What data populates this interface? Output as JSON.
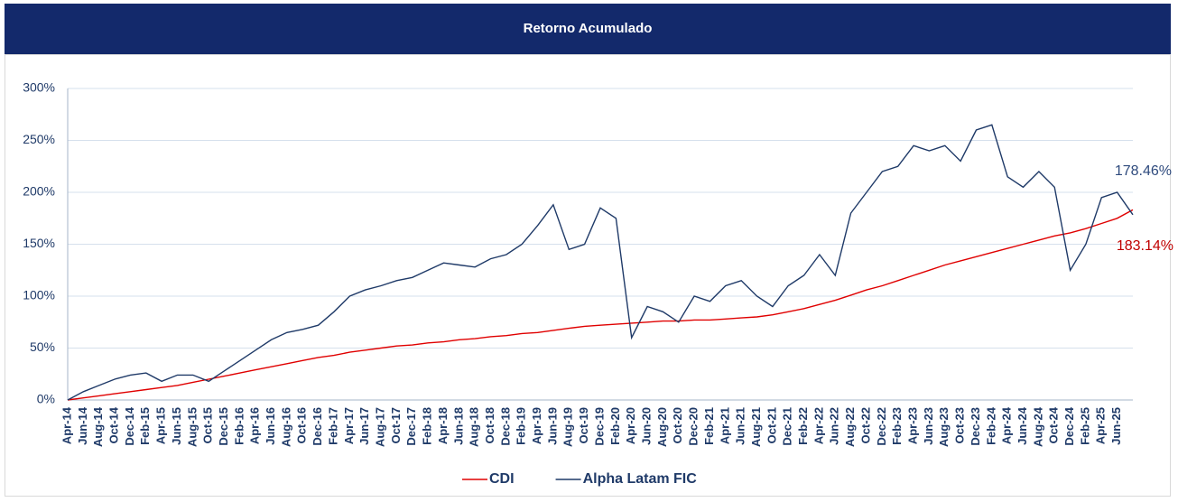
{
  "chart_data": {
    "type": "line",
    "title": "Retorno Acumulado",
    "categories": [
      "Apr-14",
      "Jun-14",
      "Aug-14",
      "Oct-14",
      "Dec-14",
      "Feb-15",
      "Apr-15",
      "Jun-15",
      "Aug-15",
      "Oct-15",
      "Dec-15",
      "Feb-16",
      "Apr-16",
      "Jun-16",
      "Aug-16",
      "Oct-16",
      "Dec-16",
      "Feb-17",
      "Apr-17",
      "Jun-17",
      "Aug-17",
      "Oct-17",
      "Dec-17",
      "Feb-18",
      "Apr-18",
      "Jun-18",
      "Aug-18",
      "Oct-18",
      "Dec-18",
      "Feb-19",
      "Apr-19",
      "Jun-19",
      "Aug-19",
      "Oct-19",
      "Dec-19",
      "Feb-20",
      "Apr-20",
      "Jun-20",
      "Aug-20",
      "Oct-20",
      "Dec-20",
      "Feb-21",
      "Apr-21",
      "Jun-21",
      "Aug-21",
      "Oct-21",
      "Dec-21",
      "Feb-22",
      "Apr-22",
      "Jun-22",
      "Aug-22",
      "Oct-22",
      "Dec-22",
      "Feb-23",
      "Apr-23",
      "Jun-23",
      "Aug-23",
      "Oct-23",
      "Dec-23",
      "Feb-24",
      "Apr-24",
      "Jun-24",
      "Aug-24",
      "Oct-24",
      "Dec-24",
      "Feb-25",
      "Apr-25",
      "Jun-25",
      null
    ],
    "series": [
      {
        "name": "CDI",
        "color": "#e00000",
        "values": [
          0,
          2,
          4,
          6,
          8,
          10,
          12,
          14,
          17,
          20,
          23,
          26,
          29,
          32,
          35,
          38,
          41,
          43,
          46,
          48,
          50,
          52,
          53,
          55,
          56,
          58,
          59,
          61,
          62,
          64,
          65,
          67,
          69,
          71,
          72,
          73,
          74,
          75,
          76,
          76,
          77,
          77,
          78,
          79,
          80,
          82,
          85,
          88,
          92,
          96,
          101,
          106,
          110,
          115,
          120,
          125,
          130,
          134,
          138,
          142,
          146,
          150,
          154,
          158,
          161,
          165,
          170,
          175,
          183.14
        ]
      },
      {
        "name": "Alpha Latam FIC",
        "color": "#1f3a68",
        "values": [
          0,
          8,
          14,
          20,
          24,
          26,
          18,
          24,
          24,
          18,
          28,
          38,
          48,
          58,
          65,
          68,
          72,
          85,
          100,
          106,
          110,
          115,
          118,
          125,
          132,
          130,
          128,
          136,
          140,
          150,
          168,
          188,
          145,
          150,
          185,
          175,
          60,
          90,
          85,
          75,
          100,
          95,
          110,
          115,
          100,
          90,
          110,
          120,
          140,
          120,
          180,
          200,
          220,
          225,
          245,
          240,
          245,
          230,
          260,
          265,
          215,
          205,
          220,
          205,
          125,
          150,
          195,
          200,
          178.46
        ]
      }
    ],
    "annotations": [
      {
        "text": "178.46%",
        "color": "#2e4a7d"
      },
      {
        "text": "183.14%",
        "color": "#c00000"
      }
    ],
    "ylim": [
      0,
      300
    ],
    "yticks": [
      {
        "value": 0,
        "label": "0%"
      },
      {
        "value": 50,
        "label": "50%"
      },
      {
        "value": 100,
        "label": "100%"
      },
      {
        "value": 150,
        "label": "150%"
      },
      {
        "value": 200,
        "label": "200%"
      },
      {
        "value": 250,
        "label": "250%"
      },
      {
        "value": 300,
        "label": "300%"
      }
    ],
    "grid": true
  }
}
